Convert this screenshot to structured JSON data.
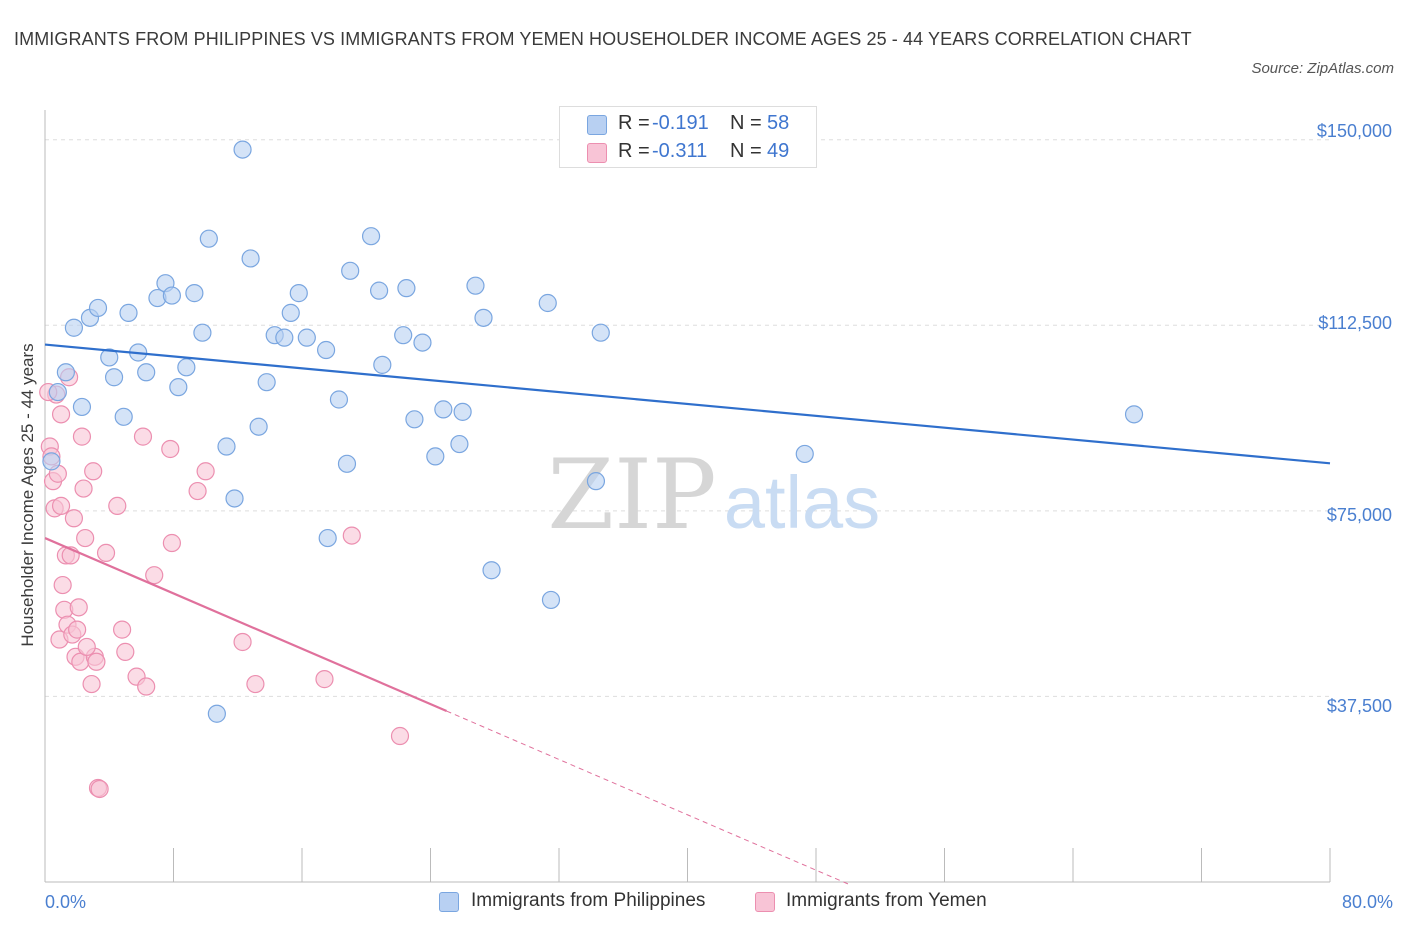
{
  "title": "IMMIGRANTS FROM PHILIPPINES VS IMMIGRANTS FROM YEMEN HOUSEHOLDER INCOME AGES 25 - 44 YEARS CORRELATION CHART",
  "source": "Source: ZipAtlas.com",
  "watermark": {
    "zip": "ZIP",
    "atlas": "atlas"
  },
  "legend_top": [
    {
      "r_label": "R = ",
      "r_value": "-0.191",
      "n_label": "N = ",
      "n_value": "58"
    },
    {
      "r_label": "R = ",
      "r_value": "-0.311",
      "n_label": "N = ",
      "n_value": "49"
    }
  ],
  "colors": {
    "philippines_fill": "#b8d0f2",
    "philippines_stroke": "#7aa6e0",
    "philippines_line": "#2f6fcc",
    "yemen_fill": "#f8c4d6",
    "yemen_stroke": "#ec8fb0",
    "yemen_line": "#e0719c",
    "grid": "#dddddd",
    "tick_text": "#4a7fd0"
  },
  "chart_data": {
    "type": "scatter",
    "title": "IMMIGRANTS FROM PHILIPPINES VS IMMIGRANTS FROM YEMEN HOUSEHOLDER INCOME AGES 25 - 44 YEARS CORRELATION CHART",
    "xlabel": "",
    "ylabel": "Householder Income Ages 25 - 44 years",
    "xlim": [
      0,
      80
    ],
    "ylim": [
      0,
      156000
    ],
    "x_tick_labels": [
      "0.0%",
      "80.0%"
    ],
    "y_ticks": [
      37500,
      75000,
      112500,
      150000
    ],
    "y_tick_labels": [
      "$37,500",
      "$75,000",
      "$112,500",
      "$150,000"
    ],
    "grid": true,
    "legend_position": "top-center and bottom",
    "series": [
      {
        "name": "Immigrants from Philippines",
        "r": -0.191,
        "n": 58,
        "trend": {
          "x": [
            0,
            80
          ],
          "y": [
            108600,
            84600
          ],
          "dashed_from_x": null
        },
        "points": [
          [
            0.4,
            85000
          ],
          [
            0.8,
            99000
          ],
          [
            1.3,
            103000
          ],
          [
            1.8,
            112000
          ],
          [
            2.3,
            96000
          ],
          [
            2.8,
            114000
          ],
          [
            3.3,
            116000
          ],
          [
            4.0,
            106000
          ],
          [
            4.3,
            102000
          ],
          [
            4.9,
            94000
          ],
          [
            5.2,
            115000
          ],
          [
            5.8,
            107000
          ],
          [
            6.3,
            103000
          ],
          [
            7.0,
            118000
          ],
          [
            7.5,
            121000
          ],
          [
            7.9,
            118500
          ],
          [
            8.3,
            100000
          ],
          [
            8.8,
            104000
          ],
          [
            9.3,
            119000
          ],
          [
            9.8,
            111000
          ],
          [
            10.2,
            130000
          ],
          [
            11.3,
            88000
          ],
          [
            11.8,
            77500
          ],
          [
            12.3,
            148000
          ],
          [
            12.8,
            126000
          ],
          [
            13.3,
            92000
          ],
          [
            13.8,
            101000
          ],
          [
            14.3,
            110500
          ],
          [
            14.9,
            110000
          ],
          [
            15.3,
            115000
          ],
          [
            15.8,
            119000
          ],
          [
            16.3,
            110000
          ],
          [
            17.5,
            107500
          ],
          [
            17.6,
            69500
          ],
          [
            18.3,
            97500
          ],
          [
            18.8,
            84500
          ],
          [
            19.0,
            123500
          ],
          [
            20.3,
            130500
          ],
          [
            20.8,
            119500
          ],
          [
            21.0,
            104500
          ],
          [
            22.3,
            110500
          ],
          [
            22.5,
            120000
          ],
          [
            23.0,
            93500
          ],
          [
            23.5,
            109000
          ],
          [
            24.3,
            86000
          ],
          [
            24.8,
            95500
          ],
          [
            25.8,
            88500
          ],
          [
            26.0,
            95000
          ],
          [
            26.8,
            120500
          ],
          [
            27.3,
            114000
          ],
          [
            27.8,
            63000
          ],
          [
            31.3,
            117000
          ],
          [
            31.5,
            57000
          ],
          [
            34.3,
            81000
          ],
          [
            34.6,
            111000
          ],
          [
            10.7,
            34000
          ],
          [
            47.3,
            86500
          ],
          [
            67.8,
            94500
          ]
        ]
      },
      {
        "name": "Immigrants from Yemen",
        "r": -0.311,
        "n": 49,
        "trend": {
          "x": [
            0,
            50
          ],
          "y": [
            69500,
            -400
          ],
          "dashed_from_x": 25
        },
        "points": [
          [
            0.3,
            88000
          ],
          [
            0.4,
            86000
          ],
          [
            0.5,
            81000
          ],
          [
            0.6,
            75500
          ],
          [
            0.7,
            98500
          ],
          [
            0.8,
            82500
          ],
          [
            0.9,
            49000
          ],
          [
            1.0,
            94500
          ],
          [
            1.1,
            60000
          ],
          [
            1.2,
            55000
          ],
          [
            1.3,
            66000
          ],
          [
            1.4,
            52000
          ],
          [
            1.5,
            102000
          ],
          [
            1.6,
            66000
          ],
          [
            1.7,
            50000
          ],
          [
            1.8,
            73500
          ],
          [
            1.9,
            45500
          ],
          [
            2.0,
            51000
          ],
          [
            2.1,
            55500
          ],
          [
            2.2,
            44500
          ],
          [
            2.3,
            90000
          ],
          [
            2.4,
            79500
          ],
          [
            2.5,
            69500
          ],
          [
            2.9,
            40000
          ],
          [
            3.0,
            83000
          ],
          [
            3.1,
            45500
          ],
          [
            3.2,
            44500
          ],
          [
            3.3,
            19000
          ],
          [
            3.4,
            18800
          ],
          [
            3.8,
            66500
          ],
          [
            4.5,
            76000
          ],
          [
            4.8,
            51000
          ],
          [
            5.0,
            46500
          ],
          [
            5.7,
            41500
          ],
          [
            6.1,
            90000
          ],
          [
            6.3,
            39500
          ],
          [
            6.8,
            62000
          ],
          [
            7.8,
            87500
          ],
          [
            7.9,
            68500
          ],
          [
            9.5,
            79000
          ],
          [
            10.0,
            83000
          ],
          [
            12.3,
            48500
          ],
          [
            13.1,
            40000
          ],
          [
            17.4,
            41000
          ],
          [
            19.1,
            70000
          ],
          [
            22.1,
            29500
          ],
          [
            0.2,
            99000
          ],
          [
            1.0,
            76000
          ],
          [
            2.6,
            47500
          ]
        ]
      }
    ]
  },
  "legend_bottom": [
    "Immigrants from Philippines",
    "Immigrants from Yemen"
  ]
}
